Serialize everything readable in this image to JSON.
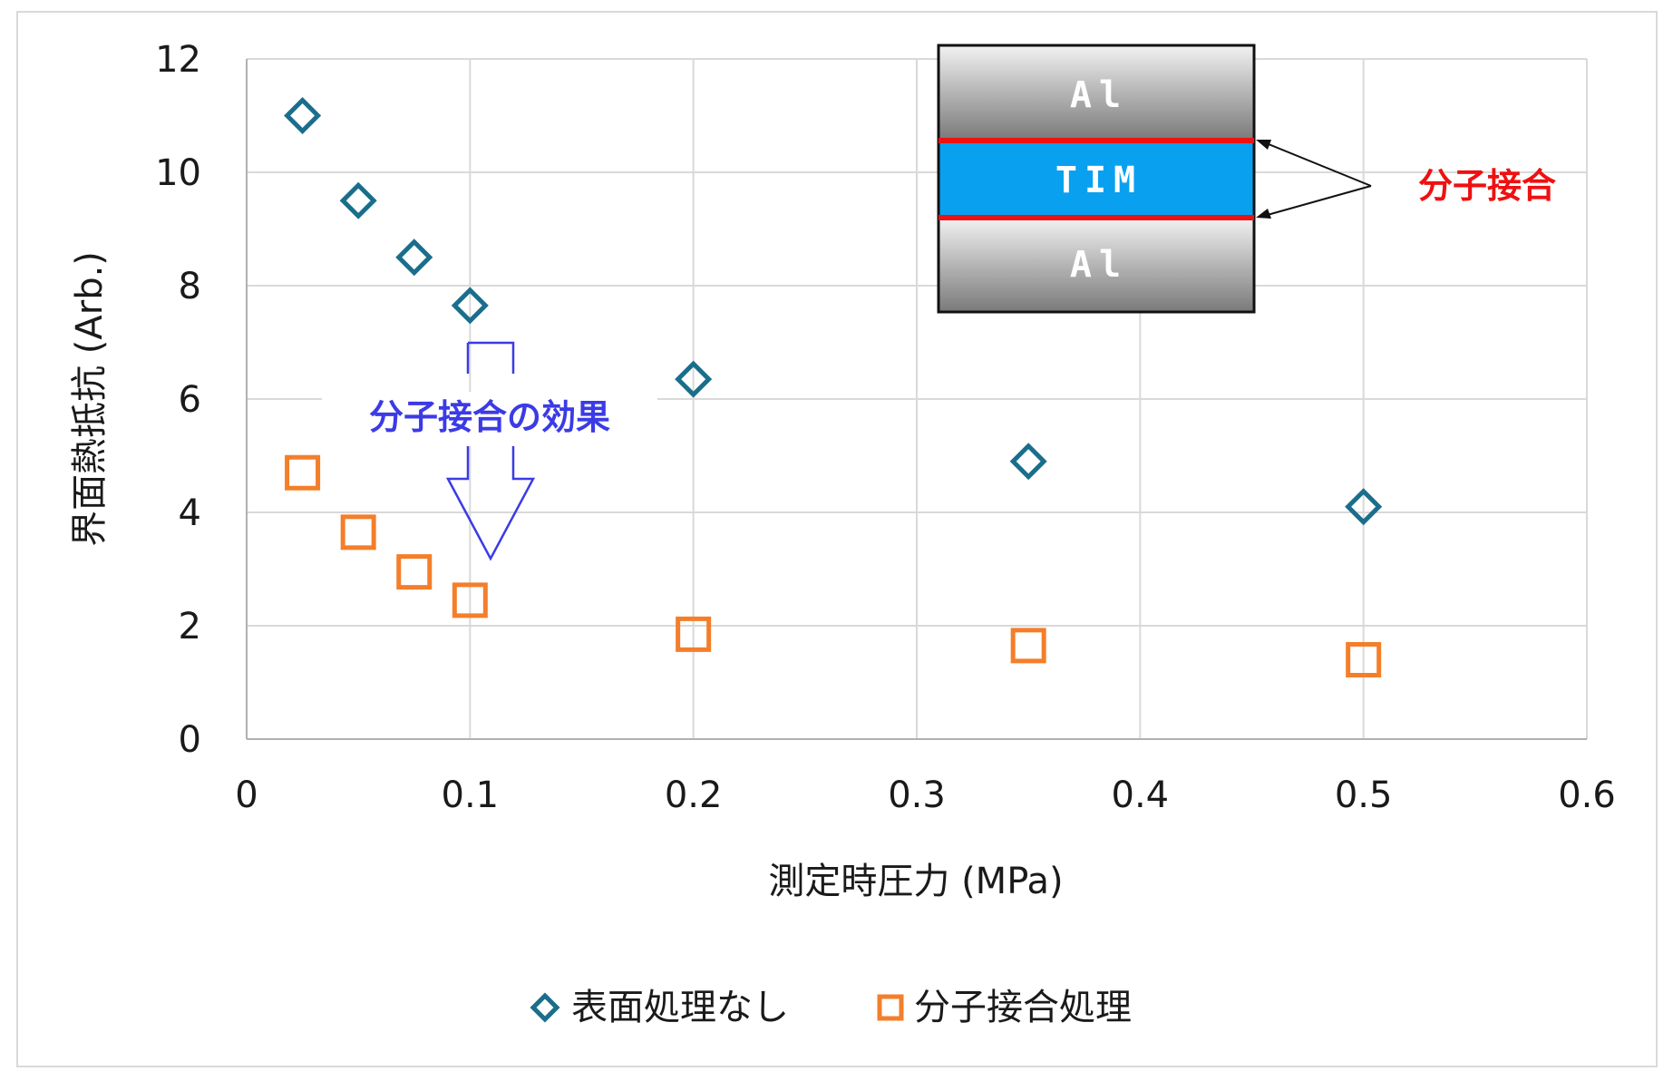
{
  "chart_data": {
    "type": "scatter",
    "xlabel": "測定時圧力 (MPa)",
    "ylabel": "界面熱抵抗 (Arb.)",
    "xlim": [
      0,
      0.6
    ],
    "ylim": [
      0,
      12
    ],
    "xticks": [
      "0",
      "0.1",
      "0.2",
      "0.3",
      "0.4",
      "0.5",
      "0.6"
    ],
    "yticks": [
      "0",
      "2",
      "4",
      "6",
      "8",
      "10",
      "12"
    ],
    "grid": true,
    "legend_position": "bottom",
    "series": [
      {
        "name": "表面処理なし",
        "marker": "diamond",
        "color": "#1a6e8c",
        "x": [
          0.025,
          0.05,
          0.075,
          0.1,
          0.2,
          0.35,
          0.5
        ],
        "y": [
          11.0,
          9.5,
          8.5,
          7.65,
          6.35,
          4.9,
          4.1
        ]
      },
      {
        "name": "分子接合処理",
        "marker": "square",
        "color": "#f47e2a",
        "x": [
          0.025,
          0.05,
          0.075,
          0.1,
          0.2,
          0.35,
          0.5
        ],
        "y": [
          4.7,
          3.65,
          2.95,
          2.45,
          1.85,
          1.65,
          1.4
        ]
      }
    ],
    "annotations": {
      "effect_label": "分子接合の効果",
      "bonding_label": "分子接合",
      "layer_top": "Al",
      "layer_middle": "TIM",
      "layer_bottom": "Al"
    },
    "colors": {
      "annotation_blue": "#3b3be6",
      "annotation_red": "#ee1111",
      "tim_fill": "#0aa0f0",
      "interface_line": "#ee1111"
    }
  }
}
